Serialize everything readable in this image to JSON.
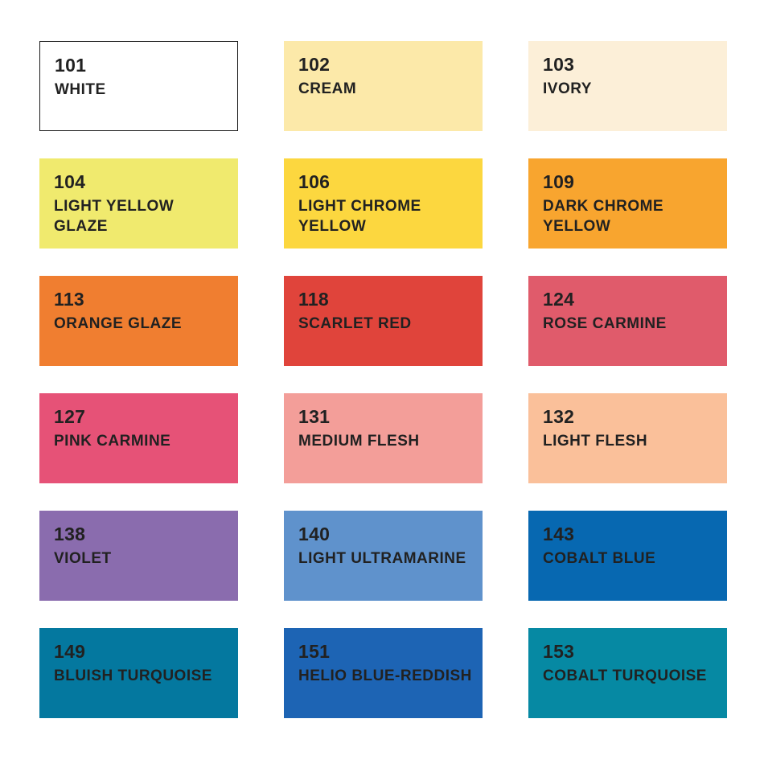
{
  "page": {
    "background": "#FFFFFF",
    "text_color": "#212121",
    "outline_color": "#1A1A1A",
    "description": "Color chart: 18 labeled color swatches in 3 columns by 6 rows"
  },
  "swatches": [
    {
      "code": "101",
      "name": "WHITE",
      "color": "#FFFFFF",
      "outlined": true
    },
    {
      "code": "102",
      "name": "CREAM",
      "color": "#FCE9A9",
      "outlined": false
    },
    {
      "code": "103",
      "name": "IVORY",
      "color": "#FCEFD8",
      "outlined": false
    },
    {
      "code": "104",
      "name": "LIGHT YELLOW\nGLAZE",
      "color": "#F0EA6E",
      "outlined": false
    },
    {
      "code": "106",
      "name": "LIGHT CHROME\nYELLOW",
      "color": "#FCD73F",
      "outlined": false
    },
    {
      "code": "109",
      "name": "DARK CHROME\nYELLOW",
      "color": "#F8A52F",
      "outlined": false
    },
    {
      "code": "113",
      "name": "ORANGE GLAZE",
      "color": "#F07E30",
      "outlined": false
    },
    {
      "code": "118",
      "name": "SCARLET RED",
      "color": "#E0443B",
      "outlined": false
    },
    {
      "code": "124",
      "name": "ROSE CARMINE",
      "color": "#E05B6B",
      "outlined": false
    },
    {
      "code": "127",
      "name": "PINK CARMINE",
      "color": "#E65277",
      "outlined": false
    },
    {
      "code": "131",
      "name": "MEDIUM FLESH",
      "color": "#F39E99",
      "outlined": false
    },
    {
      "code": "132",
      "name": "LIGHT FLESH",
      "color": "#FAC09A",
      "outlined": false
    },
    {
      "code": "138",
      "name": "VIOLET",
      "color": "#8A6CAE",
      "outlined": false
    },
    {
      "code": "140",
      "name": "LIGHT ULTRAMARINE",
      "color": "#5F92CC",
      "outlined": false
    },
    {
      "code": "143",
      "name": "COBALT BLUE",
      "color": "#0768B1",
      "outlined": false
    },
    {
      "code": "149",
      "name": "BLUISH TURQUOISE",
      "color": "#04789F",
      "outlined": false
    },
    {
      "code": "151",
      "name": "HELIO BLUE-REDDISH",
      "color": "#1D64B4",
      "outlined": false
    },
    {
      "code": "153",
      "name": "COBALT TURQUOISE",
      "color": "#0689A3",
      "outlined": false
    }
  ]
}
